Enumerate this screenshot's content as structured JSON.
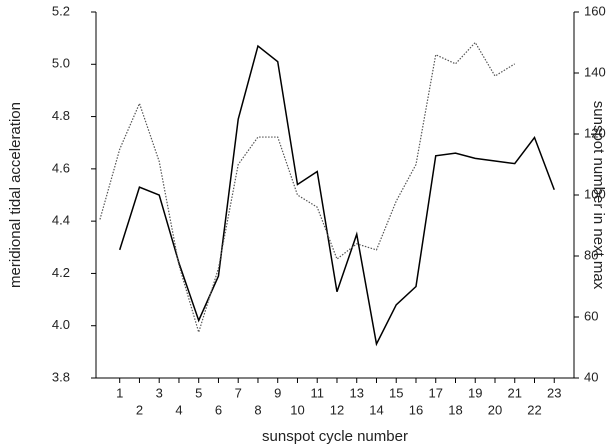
{
  "chart_data": {
    "type": "line",
    "x_label": "sunspot cycle number",
    "y_label": "meridional tidal acceleration",
    "y2_label": "sunspot number in next max",
    "x": [
      0,
      1,
      2,
      3,
      4,
      5,
      6,
      7,
      8,
      9,
      10,
      11,
      12,
      13,
      14,
      15,
      16,
      17,
      18,
      19,
      20,
      21,
      22,
      23
    ],
    "xlim": [
      -0.2,
      24
    ],
    "xticks": [
      1,
      2,
      3,
      4,
      5,
      6,
      7,
      8,
      9,
      10,
      11,
      12,
      13,
      14,
      15,
      16,
      17,
      18,
      19,
      20,
      21,
      22,
      23
    ],
    "ylim": [
      3.8,
      5.2
    ],
    "yticks": [
      3.8,
      {
        "value": 4,
        "label": "4.0"
      },
      4.2,
      4.4,
      4.6,
      4.8,
      {
        "value": 5,
        "label": "5.0"
      },
      5.2
    ],
    "y2lim": [
      40,
      160
    ],
    "y2ticks": [
      40,
      60,
      80,
      100,
      120,
      140,
      160
    ],
    "series": [
      {
        "color": "#000000",
        "style": "solid",
        "axis": "y",
        "values": [
          null,
          4.29,
          4.53,
          4.5,
          4.24,
          4.02,
          4.19,
          4.79,
          5.07,
          5.01,
          4.54,
          4.59,
          4.13,
          4.35,
          3.93,
          4.08,
          4.15,
          4.65,
          4.66,
          4.64,
          4.63,
          4.62,
          4.72,
          4.52
        ]
      },
      {
        "color": "#555555",
        "style": "dotted",
        "axis": "y2",
        "values": [
          92,
          115,
          130,
          111,
          77,
          55,
          76,
          110,
          119,
          119,
          100,
          96,
          79,
          84,
          82,
          98,
          110,
          146,
          143,
          150,
          139,
          143,
          null,
          null
        ]
      }
    ]
  }
}
